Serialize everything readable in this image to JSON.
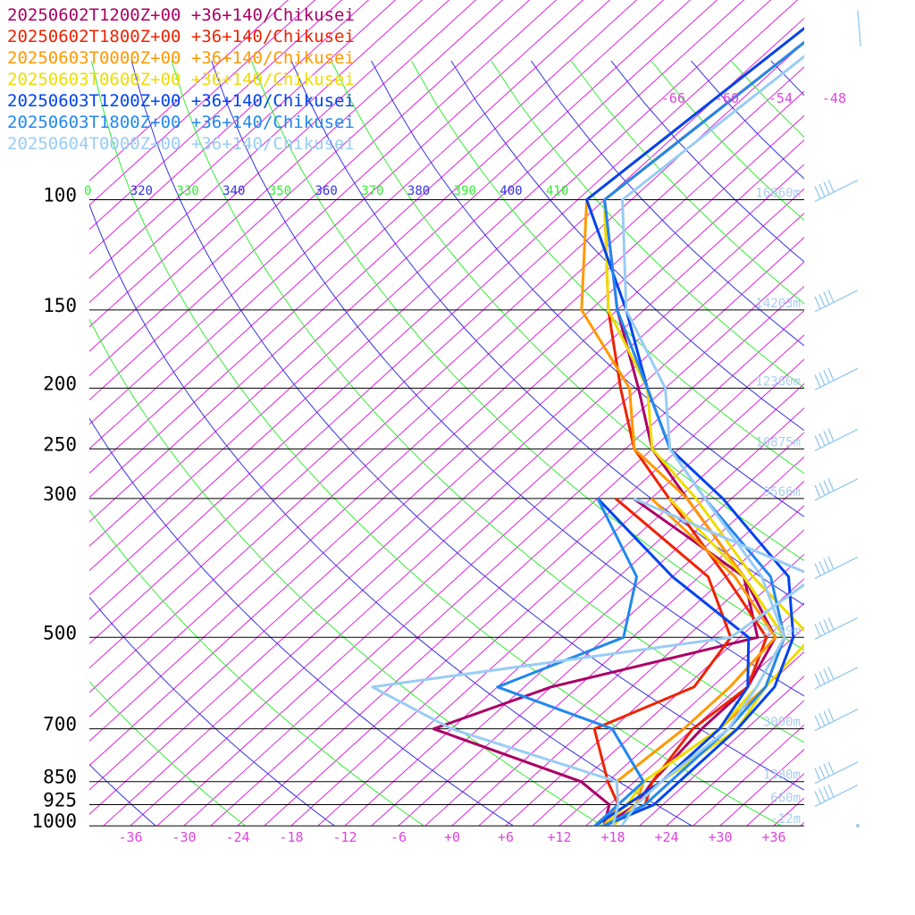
{
  "colors": {
    "isobar": "#000000",
    "isotherm": "#dd22dd",
    "isentrope_dry": "#3333dd",
    "isentrope_moist": "#33ee33",
    "temp_label": "#dd44dd",
    "height_label": "#aaccee",
    "wind_barb": "#99ccee"
  },
  "legend": [
    {
      "text": "20250602T1200Z+00 +36+140/Chikusei",
      "color": "#aa0066"
    },
    {
      "text": "20250602T1800Z+00 +36+140/Chikusei",
      "color": "#ee2200"
    },
    {
      "text": "20250603T0000Z+00 +36+140/Chikusei",
      "color": "#ff9900"
    },
    {
      "text": "20250603T0600Z+00 +36+140/Chikusei",
      "color": "#eedd00"
    },
    {
      "text": "20250603T1200Z+00 +36+140/Chikusei",
      "color": "#0044ee"
    },
    {
      "text": "20250603T1800Z+00 +36+140/Chikusei",
      "color": "#2288ee"
    },
    {
      "text": "20250604T0000Z+00 +36+140/Chikusei",
      "color": "#99ccf5"
    }
  ],
  "chart_data": {
    "type": "line",
    "subtype": "skew-T log-p sounding",
    "xlabel": "",
    "ylabel": "",
    "x_ticks": [
      "-36",
      "-30",
      "-24",
      "-18",
      "-12",
      "-6",
      "+0",
      "+6",
      "+12",
      "+18",
      "+24",
      "+30",
      "+36"
    ],
    "upper_temp_labels": [
      "-66",
      "-60",
      "-54",
      "-48"
    ],
    "theta_labels": [
      "0",
      "320",
      "330",
      "340",
      "350",
      "360",
      "370",
      "380",
      "390",
      "400",
      "410"
    ],
    "pressure_levels": [
      {
        "p": 100,
        "label": "100",
        "height": "16660m"
      },
      {
        "p": 150,
        "label": "150",
        "height": "14203m"
      },
      {
        "p": 200,
        "label": "200",
        "height": "12360m"
      },
      {
        "p": 250,
        "label": "250",
        "height": "10875m"
      },
      {
        "p": 300,
        "label": "300",
        "height": "9566m"
      },
      {
        "p": 500,
        "label": "500",
        "height": "5709m"
      },
      {
        "p": 700,
        "label": "700",
        "height": "3000m"
      },
      {
        "p": 850,
        "label": "850",
        "height": "1380m"
      },
      {
        "p": 925,
        "label": "925",
        "height": "660m"
      },
      {
        "p": 1000,
        "label": "1000",
        "height": "-12m"
      }
    ],
    "series": [
      {
        "name": "20250602T1200Z+00 +36+140/Chikusei",
        "color": "#aa0066",
        "temp": [
          [
            1000,
            17
          ],
          [
            925,
            18
          ],
          [
            850,
            17
          ],
          [
            700,
            16
          ],
          [
            600,
            16
          ],
          [
            500,
            13
          ],
          [
            400,
            2
          ],
          [
            300,
            -14
          ],
          [
            250,
            -24
          ],
          [
            200,
            -33
          ],
          [
            150,
            -45
          ],
          [
            100,
            -60
          ]
        ],
        "dew": [
          [
            1000,
            17
          ],
          [
            925,
            15
          ],
          [
            850,
            9
          ],
          [
            700,
            -14
          ],
          [
            600,
            -6
          ],
          [
            500,
            11
          ],
          [
            400,
            2
          ],
          [
            300,
            -20
          ]
        ]
      },
      {
        "name": "20250602T1800Z+00 +36+140/Chikusei",
        "color": "#ee2200",
        "temp": [
          [
            1000,
            17
          ],
          [
            925,
            19
          ],
          [
            850,
            17
          ],
          [
            700,
            15
          ],
          [
            600,
            16
          ],
          [
            500,
            12
          ],
          [
            400,
            0
          ],
          [
            300,
            -16
          ],
          [
            250,
            -26
          ],
          [
            200,
            -35
          ],
          [
            150,
            -46
          ],
          [
            100,
            -60
          ]
        ],
        "dew": [
          [
            1000,
            16
          ],
          [
            925,
            16
          ],
          [
            850,
            12
          ],
          [
            700,
            4
          ],
          [
            600,
            10
          ],
          [
            500,
            8
          ],
          [
            400,
            -2
          ],
          [
            300,
            -22
          ]
        ]
      },
      {
        "name": "20250603T0000Z+00 +36+140/Chikusei",
        "color": "#ff9900",
        "temp": [
          [
            1000,
            18
          ],
          [
            925,
            18
          ],
          [
            850,
            16
          ],
          [
            700,
            18
          ],
          [
            600,
            18
          ],
          [
            500,
            14
          ],
          [
            400,
            2
          ],
          [
            300,
            -14
          ],
          [
            250,
            -26
          ],
          [
            200,
            -34
          ],
          [
            150,
            -49
          ],
          [
            100,
            -62
          ]
        ],
        "dew": [
          [
            1000,
            17
          ],
          [
            925,
            16
          ],
          [
            850,
            13
          ],
          [
            700,
            14
          ],
          [
            600,
            14
          ],
          [
            500,
            13
          ],
          [
            400,
            1
          ],
          [
            300,
            -18
          ]
        ]
      },
      {
        "name": "20250603T0600Z+00 +36+140/Chikusei",
        "color": "#eedd00",
        "temp": [
          [
            1000,
            18
          ],
          [
            925,
            18
          ],
          [
            850,
            18
          ],
          [
            700,
            20
          ],
          [
            600,
            18
          ],
          [
            500,
            17
          ],
          [
            400,
            3
          ],
          [
            300,
            -13
          ],
          [
            250,
            -24
          ],
          [
            200,
            -32
          ],
          [
            150,
            -46
          ],
          [
            100,
            -60
          ]
        ],
        "dew": [
          [
            1000,
            17
          ],
          [
            925,
            17
          ],
          [
            850,
            16
          ],
          [
            700,
            18
          ],
          [
            600,
            17
          ],
          [
            500,
            14
          ],
          [
            400,
            2
          ],
          [
            300,
            -16
          ]
        ]
      },
      {
        "name": "20250603T1200Z+00 +36+140/Chikusei",
        "color": "#0044ee",
        "temp": [
          [
            1000,
            17
          ],
          [
            925,
            20
          ],
          [
            850,
            20
          ],
          [
            700,
            20
          ],
          [
            600,
            19
          ],
          [
            500,
            15
          ],
          [
            400,
            7
          ],
          [
            300,
            -10
          ],
          [
            250,
            -22
          ],
          [
            200,
            -32
          ],
          [
            150,
            -44
          ],
          [
            100,
            -62
          ]
        ],
        "dew": [
          [
            1000,
            16
          ],
          [
            925,
            17
          ],
          [
            850,
            18
          ],
          [
            700,
            18
          ],
          [
            600,
            16
          ],
          [
            500,
            10
          ],
          [
            400,
            -6
          ],
          [
            300,
            -24
          ]
        ]
      },
      {
        "name": "20250603T1800Z+00 +36+140/Chikusei",
        "color": "#2288ee",
        "temp": [
          [
            1000,
            17
          ],
          [
            925,
            19
          ],
          [
            850,
            19
          ],
          [
            700,
            19
          ],
          [
            600,
            18
          ],
          [
            500,
            14
          ],
          [
            400,
            5
          ],
          [
            300,
            -12
          ],
          [
            250,
            -22
          ],
          [
            200,
            -32
          ],
          [
            150,
            -45
          ],
          [
            100,
            -60
          ]
        ],
        "dew": [
          [
            1000,
            16
          ],
          [
            925,
            16
          ],
          [
            850,
            16
          ],
          [
            700,
            6
          ],
          [
            600,
            -12
          ],
          [
            500,
            -4
          ],
          [
            400,
            -10
          ],
          [
            300,
            -24
          ]
        ]
      },
      {
        "name": "20250604T0000Z+00 +36+140/Chikusei",
        "color": "#99ccf5",
        "temp": [
          [
            1000,
            19
          ],
          [
            925,
            18
          ],
          [
            850,
            18
          ],
          [
            700,
            19
          ],
          [
            600,
            17
          ],
          [
            500,
            14
          ],
          [
            400,
            4
          ],
          [
            300,
            -12
          ],
          [
            250,
            -22
          ],
          [
            200,
            -30
          ],
          [
            150,
            -44
          ],
          [
            100,
            -58
          ]
        ],
        "dew": [
          [
            1000,
            18
          ],
          [
            925,
            16
          ],
          [
            850,
            13
          ],
          [
            700,
            -12
          ],
          [
            600,
            -26
          ],
          [
            500,
            8
          ],
          [
            400,
            10
          ],
          [
            300,
            -20
          ]
        ]
      }
    ],
    "wind_levels": [
      100,
      150,
      200,
      250,
      300,
      400,
      500,
      600,
      700,
      850,
      925
    ]
  }
}
